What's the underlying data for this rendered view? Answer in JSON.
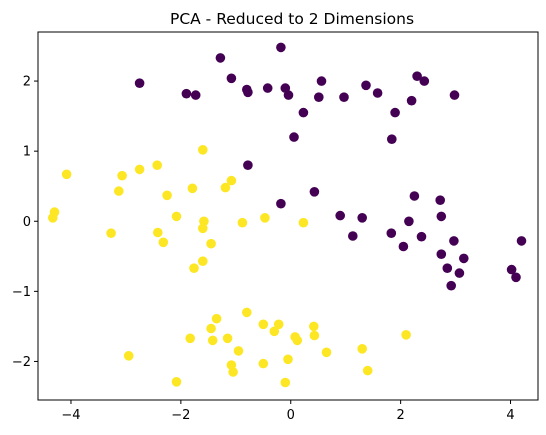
{
  "chart_data": {
    "type": "scatter",
    "title": "PCA - Reduced to 2 Dimensions",
    "xlabel": "",
    "ylabel": "",
    "xlim": [
      -4.6,
      4.5
    ],
    "ylim": [
      -2.55,
      2.7
    ],
    "xticks": [
      -4,
      -2,
      0,
      2,
      4
    ],
    "yticks": [
      -2,
      -1,
      0,
      1,
      2
    ],
    "xtick_labels": [
      "−4",
      "−2",
      "0",
      "2",
      "4"
    ],
    "ytick_labels": [
      "−2",
      "−1",
      "0",
      "1",
      "2"
    ],
    "grid": false,
    "legend": false,
    "colors": {
      "cluster_purple": "#440154",
      "cluster_yellow": "#fde725"
    },
    "series": [
      {
        "color_key": "cluster_purple",
        "points": [
          [
            -2.75,
            1.97
          ],
          [
            -1.9,
            1.82
          ],
          [
            -1.73,
            1.8
          ],
          [
            -1.28,
            2.33
          ],
          [
            -1.08,
            2.04
          ],
          [
            -0.8,
            1.88
          ],
          [
            -0.78,
            1.84
          ],
          [
            -0.42,
            1.9
          ],
          [
            -0.18,
            2.48
          ],
          [
            -0.1,
            1.9
          ],
          [
            -0.04,
            1.8
          ],
          [
            0.06,
            1.2
          ],
          [
            0.23,
            1.55
          ],
          [
            0.51,
            1.77
          ],
          [
            0.56,
            2.0
          ],
          [
            0.97,
            1.77
          ],
          [
            1.37,
            1.94
          ],
          [
            1.58,
            1.83
          ],
          [
            1.84,
            1.17
          ],
          [
            1.9,
            1.55
          ],
          [
            2.2,
            1.72
          ],
          [
            2.3,
            2.07
          ],
          [
            2.43,
            2.0
          ],
          [
            2.98,
            1.8
          ],
          [
            -0.78,
            0.8
          ],
          [
            -0.18,
            0.25
          ],
          [
            0.43,
            0.42
          ],
          [
            0.9,
            0.08
          ],
          [
            1.13,
            -0.21
          ],
          [
            1.3,
            0.05
          ],
          [
            1.83,
            -0.17
          ],
          [
            2.05,
            -0.36
          ],
          [
            2.15,
            0.0
          ],
          [
            2.25,
            0.36
          ],
          [
            2.38,
            -0.22
          ],
          [
            2.72,
            0.3
          ],
          [
            2.74,
            0.07
          ],
          [
            2.74,
            -0.47
          ],
          [
            2.85,
            -0.67
          ],
          [
            2.92,
            -0.92
          ],
          [
            2.97,
            -0.28
          ],
          [
            3.15,
            -0.53
          ],
          [
            3.07,
            -0.74
          ],
          [
            4.02,
            -0.69
          ],
          [
            4.1,
            -0.8
          ],
          [
            4.2,
            -0.28
          ]
        ]
      },
      {
        "color_key": "cluster_yellow",
        "points": [
          [
            -4.08,
            0.67
          ],
          [
            -4.3,
            0.13
          ],
          [
            -4.33,
            0.05
          ],
          [
            -3.27,
            -0.17
          ],
          [
            -3.13,
            0.43
          ],
          [
            -3.07,
            0.65
          ],
          [
            -2.75,
            0.74
          ],
          [
            -2.43,
            0.8
          ],
          [
            -2.25,
            0.37
          ],
          [
            -2.08,
            0.07
          ],
          [
            -2.42,
            -0.16
          ],
          [
            -2.32,
            -0.3
          ],
          [
            -1.79,
            0.47
          ],
          [
            -1.6,
            1.02
          ],
          [
            -1.19,
            0.48
          ],
          [
            -1.08,
            0.58
          ],
          [
            -1.6,
            -0.1
          ],
          [
            -1.58,
            0.0
          ],
          [
            -1.45,
            -0.32
          ],
          [
            -1.6,
            -0.57
          ],
          [
            -1.76,
            -0.67
          ],
          [
            -0.88,
            -0.02
          ],
          [
            -0.47,
            0.05
          ],
          [
            0.23,
            -0.02
          ],
          [
            -2.95,
            -1.92
          ],
          [
            -2.08,
            -2.29
          ],
          [
            -1.83,
            -1.67
          ],
          [
            -1.45,
            -1.53
          ],
          [
            -1.35,
            -1.39
          ],
          [
            -1.42,
            -1.7
          ],
          [
            -1.15,
            -1.67
          ],
          [
            -1.08,
            -2.05
          ],
          [
            -1.05,
            -2.15
          ],
          [
            -0.8,
            -1.3
          ],
          [
            -0.95,
            -1.85
          ],
          [
            -0.5,
            -1.47
          ],
          [
            -0.5,
            -2.03
          ],
          [
            -0.3,
            -1.57
          ],
          [
            -0.22,
            -1.47
          ],
          [
            -0.1,
            -2.3
          ],
          [
            -0.05,
            -1.97
          ],
          [
            0.08,
            -1.65
          ],
          [
            0.12,
            -1.7
          ],
          [
            0.42,
            -1.5
          ],
          [
            0.43,
            -1.63
          ],
          [
            0.65,
            -1.87
          ],
          [
            1.3,
            -1.82
          ],
          [
            1.4,
            -2.13
          ],
          [
            2.1,
            -1.62
          ]
        ]
      }
    ]
  }
}
